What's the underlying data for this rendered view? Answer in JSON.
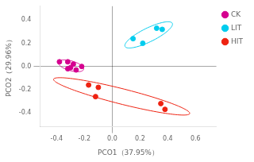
{
  "chart_data": {
    "type": "scatter",
    "xlabel": "PCO1（37.95%）",
    "ylabel": "PCO2（29.96%）",
    "xlim": [
      -0.52,
      0.75
    ],
    "ylim": [
      -0.52,
      0.52
    ],
    "xticks": [
      -0.4,
      -0.2,
      {
        "value": 0,
        "label": "0.0"
      },
      0.2,
      0.4,
      0.6
    ],
    "yticks": [
      -0.4,
      -0.2,
      {
        "value": 0,
        "label": "0.0"
      },
      0.2,
      0.4
    ],
    "grid": false,
    "legend": "right",
    "series": [
      {
        "name": "CK",
        "color": "#D5008F",
        "values": [
          [
            -0.38,
            0.04
          ],
          [
            -0.32,
            0.04
          ],
          [
            -0.28,
            0.02
          ],
          [
            -0.32,
            -0.02
          ],
          [
            -0.26,
            -0.03
          ],
          [
            -0.22,
            0.0
          ],
          [
            -0.3,
            -0.01
          ]
        ],
        "ellipse": {
          "center": [
            -0.297143,
            0.005714
          ],
          "width": 0.19266,
          "height": 0.08222,
          "angle": -19.99
        }
      },
      {
        "name": "LIT",
        "color": "#00CCEE",
        "values": [
          [
            0.15,
            0.24
          ],
          [
            0.22,
            0.2
          ],
          [
            0.32,
            0.33
          ],
          [
            0.36,
            0.32
          ]
        ],
        "ellipse": {
          "center": [
            0.2625,
            0.2725
          ],
          "width": 0.39517,
          "height": 0.11389,
          "angle": 31.16
        }
      },
      {
        "name": "HIT",
        "color": "#EE2211",
        "values": [
          [
            -0.17,
            -0.16
          ],
          [
            -0.1,
            -0.18
          ],
          [
            -0.12,
            -0.26
          ],
          [
            0.35,
            -0.32
          ],
          [
            0.38,
            -0.37
          ]
        ],
        "ellipse": {
          "center": [
            0.068,
            -0.258
          ],
          "width": 1.02443,
          "height": 0.1305,
          "angle": -16.87
        }
      }
    ]
  }
}
